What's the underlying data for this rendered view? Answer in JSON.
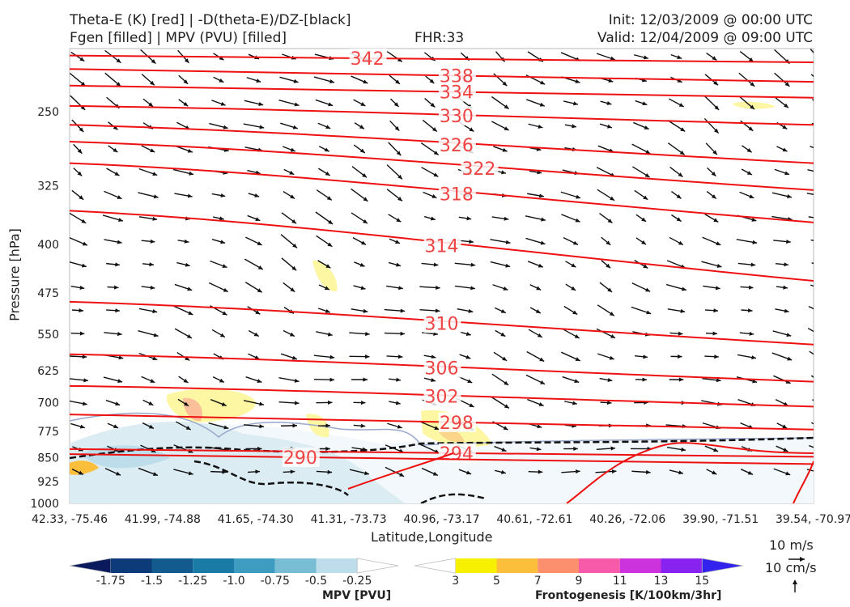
{
  "header": {
    "title_line1": "Theta-E (K) [red] | -D(theta-E)/DZ-[black]",
    "title_line2": "Fgen [filled] | MPV (PVU) [filled]",
    "fhr": "FHR:33",
    "init": "Init: 12/03/2009 @ 00:00 UTC",
    "valid": "Valid: 12/04/2009 @ 09:00 UTC"
  },
  "chart_data": {
    "type": "cross-section",
    "ylabel": "Pressure [hPa]",
    "xlabel": "Latitude,Longitude",
    "ylim": [
      1000,
      200
    ],
    "y_scale": "log",
    "y_ticks": [
      250,
      325,
      400,
      475,
      550,
      625,
      700,
      775,
      850,
      925,
      1000
    ],
    "x_ticks": [
      "42.33, -75.46",
      "41.99, -74.88",
      "41.65, -74.30",
      "41.31, -73.73",
      "40.96, -73.17",
      "40.61, -72.61",
      "40.26, -72.06",
      "39.90, -71.51",
      "39.54, -70.97"
    ],
    "theta_e_color": "#ee1111",
    "theta_e_contours": [
      {
        "label": "342",
        "pressure_at_left": 205,
        "pressure_at_right": 210
      },
      {
        "label": "338",
        "pressure_at_left": 215,
        "pressure_at_right": 225
      },
      {
        "label": "334",
        "pressure_at_left": 228,
        "pressure_at_right": 238
      },
      {
        "label": "330",
        "pressure_at_left": 245,
        "pressure_at_right": 262
      },
      {
        "label": "326",
        "pressure_at_left": 262,
        "pressure_at_right": 300
      },
      {
        "label": "322",
        "pressure_at_left": 278,
        "pressure_at_right": 330
      },
      {
        "label": "318",
        "pressure_at_left": 300,
        "pressure_at_right": 370
      },
      {
        "label": "314",
        "pressure_at_left": 355,
        "pressure_at_right": 455
      },
      {
        "label": "310",
        "pressure_at_left": 490,
        "pressure_at_right": 570
      },
      {
        "label": "306",
        "pressure_at_left": 590,
        "pressure_at_right": 650
      },
      {
        "label": "302",
        "pressure_at_left": 660,
        "pressure_at_right": 710
      },
      {
        "label": "298",
        "pressure_at_left": 730,
        "pressure_at_right": 770
      },
      {
        "label": "294",
        "pressure_at_left": 825,
        "pressure_at_right": 848
      },
      {
        "label": "290",
        "pressure_at_left": 840,
        "pressure_at_right": 870
      },
      {
        "label": "298",
        "pressure_at_left": null,
        "pressure_at_right": 925
      }
    ],
    "mpv_colorbar": {
      "label": "MPV [PVU]",
      "ticks": [
        "-1.75",
        "-1.5",
        "-1.25",
        "-1.0",
        "-0.75",
        "-0.5",
        "-0.25"
      ],
      "colors": [
        "#0a1a5c",
        "#0d3a78",
        "#135a8e",
        "#1a7ca6",
        "#3d9cc0",
        "#79bdd5",
        "#bcdde9",
        "#ffffff"
      ]
    },
    "fgen_colorbar": {
      "label": "Frontogenesis [K/100km/3hr]",
      "ticks": [
        "3",
        "5",
        "7",
        "9",
        "11",
        "13",
        "15"
      ],
      "colors": [
        "#ffffff",
        "#f7f000",
        "#fbbf3c",
        "#fb8f6e",
        "#f75aa8",
        "#cc33dd",
        "#8822ee",
        "#3322ee"
      ]
    },
    "vector_legend": {
      "horizontal": "10 m/s",
      "vertical": "10 cm/s"
    }
  }
}
